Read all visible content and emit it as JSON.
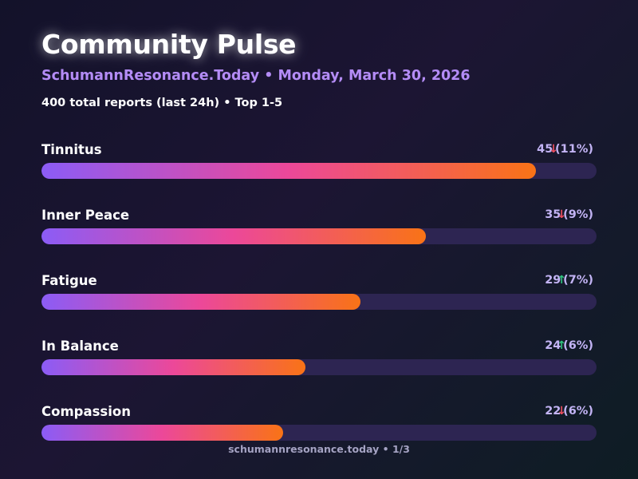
{
  "header": {
    "title": "Community Pulse",
    "subtitle": "SchumannResonance.Today • Monday, March 30, 2026",
    "summary": "400 total reports (last 24h) • Top 1-5"
  },
  "chart_data": {
    "type": "bar",
    "orientation": "horizontal",
    "title": "Community Pulse",
    "total_reports": 400,
    "xlim": [
      0,
      50
    ],
    "categories": [
      "Tinnitus",
      "Inner Peace",
      "Fatigue",
      "In Balance",
      "Compassion"
    ],
    "values": [
      45,
      35,
      29,
      24,
      22
    ],
    "percent_labels": [
      "(11%)",
      "(9%)",
      "(7%)",
      "(6%)",
      "(6%)"
    ],
    "trends": [
      "down",
      "down",
      "up",
      "up",
      "down"
    ],
    "colors": {
      "gradient_start": "#8b5cf6",
      "gradient_mid": "#ec4899",
      "gradient_end": "#f97316",
      "track": "#2d2552",
      "trend_up": "#2ec27e",
      "trend_down": "#ef4d5e"
    }
  },
  "footer": {
    "text": "schumannresonance.today • 1/3"
  }
}
